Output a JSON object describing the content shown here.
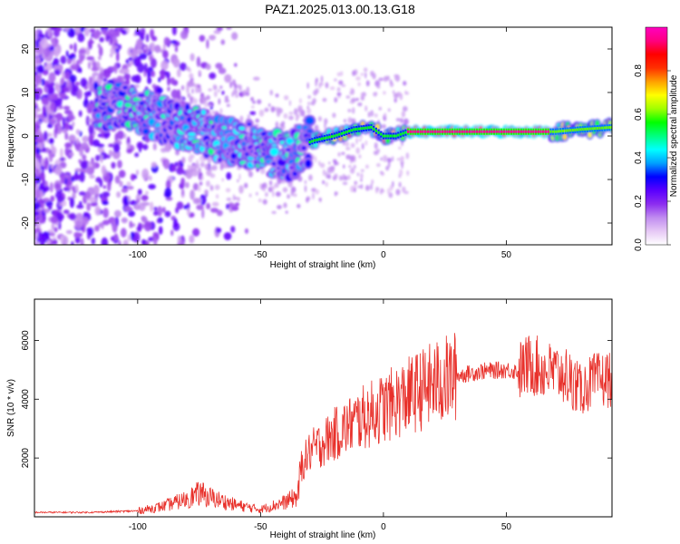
{
  "title": "PAZ1.2025.013.00.13.G18",
  "chart_data": [
    {
      "type": "heatmap",
      "xlabel": "Height of straight line (km)",
      "ylabel": "Frequency (Hz)",
      "xlim": [
        -142,
        93
      ],
      "ylim": [
        -25,
        25
      ],
      "xticks": [
        -100,
        -50,
        0,
        50
      ],
      "yticks": [
        -20,
        -10,
        0,
        10,
        20
      ],
      "colorbar": {
        "label": "Normalized spectral amplitude",
        "range": [
          0,
          1
        ],
        "ticks": [
          "0.0",
          "0.2",
          "0.4",
          "0.6",
          "0.8"
        ],
        "tick_values": [
          0,
          0.2,
          0.4,
          0.6,
          0.8
        ],
        "colormap": [
          "#ffffff",
          "#e6c8f5",
          "#c08cf0",
          "#8c2df0",
          "#5a00ff",
          "#0000ff",
          "#00a0ff",
          "#00ffff",
          "#00ff80",
          "#00ff00",
          "#a0ff00",
          "#ffff00",
          "#ffa000",
          "#ff3000",
          "#ff0000",
          "#ff0080",
          "#ff00c0"
        ]
      },
      "ridge": {
        "x": [
          -115,
          -105,
          -95,
          -85,
          -75,
          -65,
          -55,
          -45,
          -38,
          -33,
          -28,
          -20,
          -12,
          -5,
          0,
          5,
          10,
          20,
          30,
          40,
          50,
          60,
          70,
          80,
          93
        ],
        "y": [
          7,
          7,
          5,
          3,
          1,
          -1,
          -2,
          -4,
          -5,
          -2,
          -1,
          0,
          1.5,
          2,
          0,
          0,
          1,
          1,
          1,
          1,
          1,
          1,
          1,
          1.5,
          2
        ]
      }
    },
    {
      "type": "line",
      "xlabel": "Height of straight line (km)",
      "ylabel": "SNR (10 * v/v)",
      "xlim": [
        -142,
        93
      ],
      "ylim": [
        0,
        7400
      ],
      "xticks": [
        -100,
        -50,
        0,
        50
      ],
      "yticks": [
        2000,
        4000,
        6000
      ],
      "color": "#e8302a",
      "envelope": {
        "x": [
          -142,
          -120,
          -100,
          -90,
          -80,
          -75,
          -70,
          -60,
          -50,
          -40,
          -35,
          -33,
          -30,
          -20,
          -10,
          0,
          10,
          20,
          30,
          40,
          50,
          55,
          60,
          65,
          70,
          75,
          80,
          85,
          93
        ],
        "y": [
          150,
          150,
          200,
          350,
          600,
          800,
          650,
          400,
          250,
          500,
          700,
          1800,
          2200,
          2800,
          3300,
          3700,
          4100,
          4500,
          4800,
          4950,
          5000,
          4950,
          5200,
          5000,
          4900,
          4800,
          4300,
          4600,
          4700
        ]
      }
    }
  ]
}
